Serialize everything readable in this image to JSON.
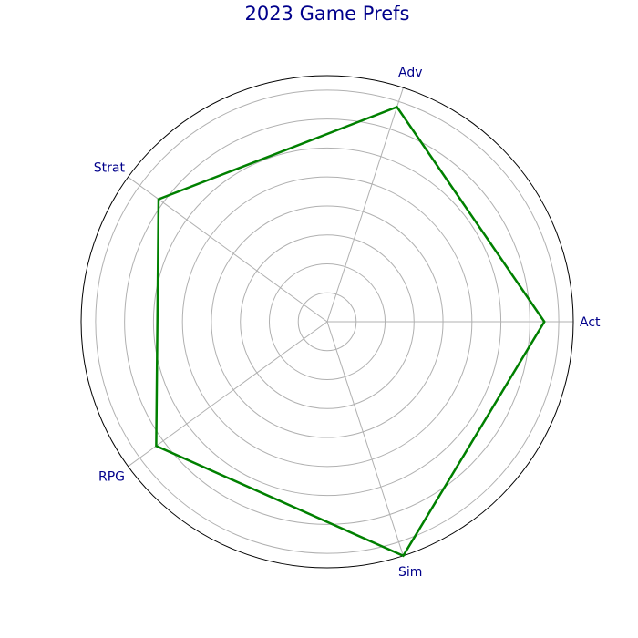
{
  "chart_data": {
    "type": "radar",
    "title": "2023 Game Prefs",
    "categories": [
      "Act",
      "Adv",
      "Strat",
      "RPG",
      "Sim"
    ],
    "series": [
      {
        "values": [
          75,
          78,
          72,
          73,
          85
        ],
        "color": "#008000"
      }
    ],
    "rmax": 85,
    "ring_step": 10,
    "grid": true,
    "colors": {
      "title": "#00008b",
      "labels": "#00008b",
      "grid": "#b0b0b0",
      "frame": "#000000"
    }
  }
}
